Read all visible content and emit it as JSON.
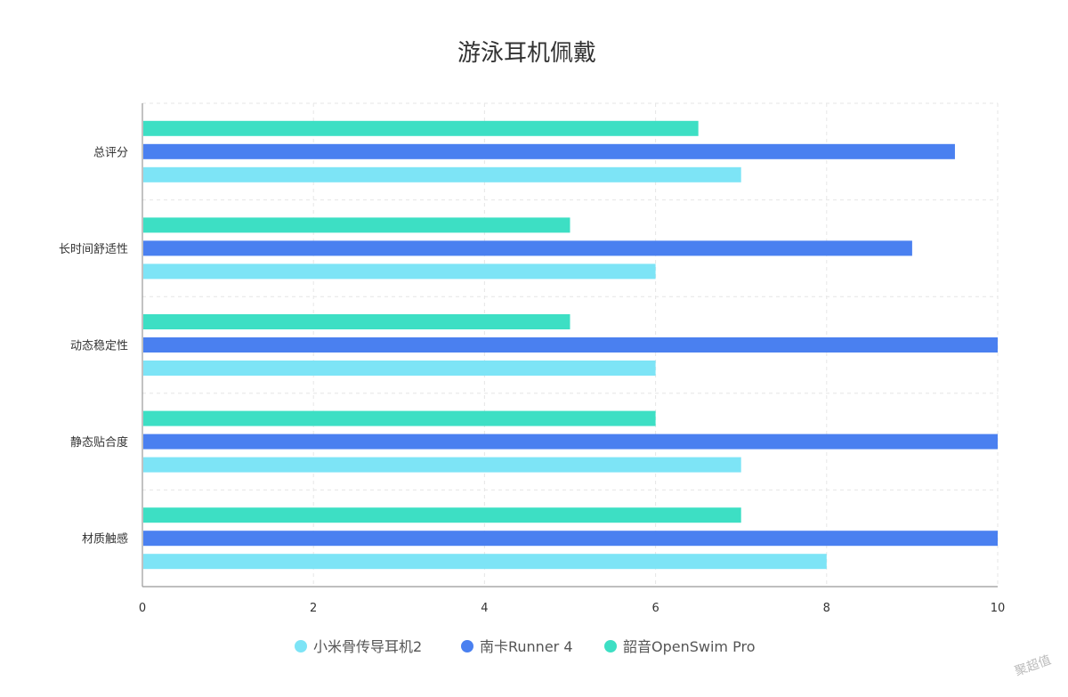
{
  "chart_data": {
    "type": "bar",
    "orientation": "horizontal",
    "title": "游泳耳机佩戴",
    "categories": [
      "总评分",
      "长时间舒适性",
      "动态稳定性",
      "静态贴合度",
      "材质触感"
    ],
    "series": [
      {
        "name": "韶音OpenSwim Pro",
        "color": "#3ddfc4",
        "values": [
          6.5,
          5,
          5,
          6,
          7
        ]
      },
      {
        "name": "南卡Runner 4",
        "color": "#4a80f0",
        "values": [
          9.5,
          9,
          10,
          10,
          10
        ]
      },
      {
        "name": "小米骨传导耳机2",
        "color": "#7de4f6",
        "values": [
          7,
          6,
          6,
          7,
          8
        ]
      }
    ],
    "xlim": [
      0,
      10
    ],
    "xticks": [
      0,
      2,
      4,
      6,
      8,
      10
    ],
    "grid": true,
    "legend_position": "bottom",
    "legend_order": [
      "小米骨传导耳机2",
      "南卡Runner 4",
      "韶音OpenSwim Pro"
    ]
  },
  "watermark": "聚超值"
}
